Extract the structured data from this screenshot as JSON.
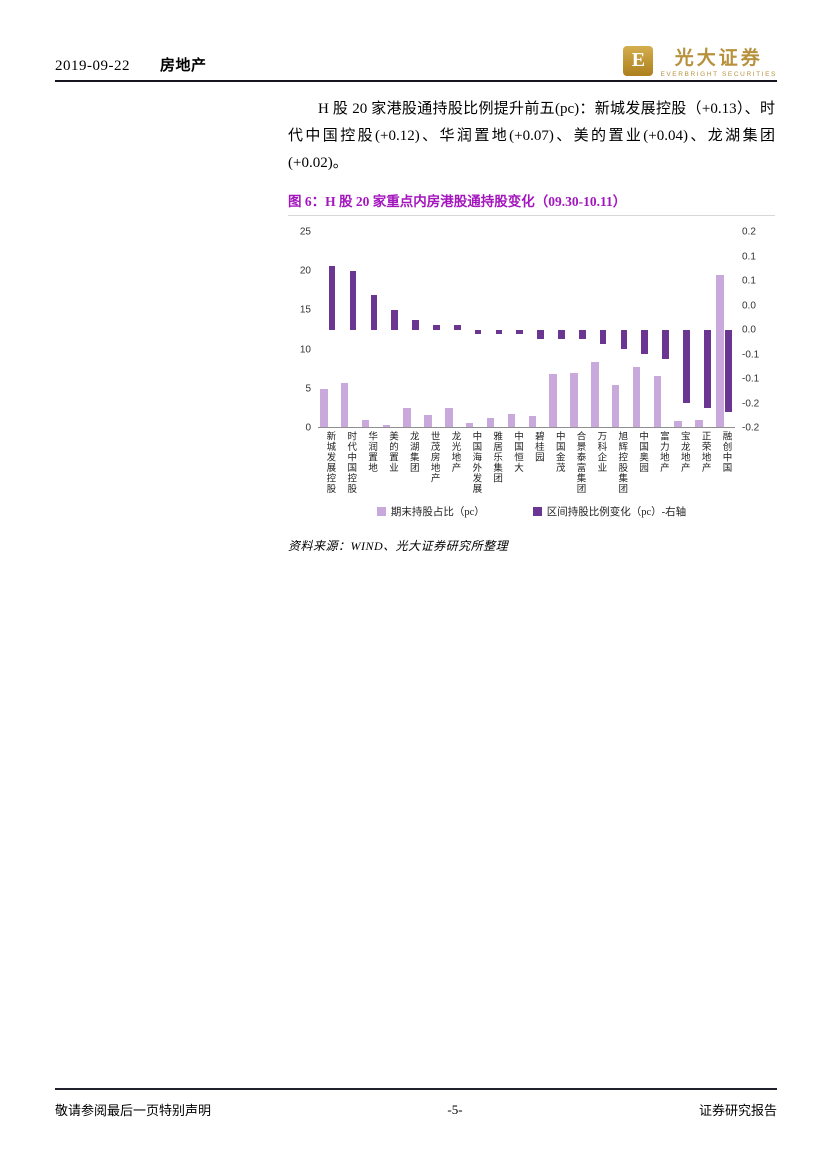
{
  "header": {
    "date": "2019-09-22",
    "category": "房地产",
    "logo": {
      "mark": "E",
      "name": "光大证券",
      "subtitle": "EVERBRIGHT SECURITIES"
    }
  },
  "body": {
    "paragraph": "H 股 20 家港股通持股比例提升前五(pc)：新城发展控股（+0.13）、时代中国控股(+0.12)、华润置地(+0.07)、美的置业(+0.04)、龙湖集团(+0.02)。"
  },
  "figure": {
    "title": "图 6：H 股 20 家重点内房港股通持股变化（09.30-10.11）",
    "source": "资料来源：WIND、光大证券研究所整理"
  },
  "chart_data": {
    "type": "bar",
    "title": "H 股 20 家重点内房港股通持股变化（09.30-10.11）",
    "categories": [
      "新城发展控股",
      "时代中国控股",
      "华润置地",
      "美的置业",
      "龙湖集团",
      "世茂房地产",
      "龙光地产",
      "中国海外发展",
      "雅居乐集团",
      "中国恒大",
      "碧桂园",
      "中国金茂",
      "合景泰富集团",
      "万科企业",
      "旭辉控股集团",
      "中国奥园",
      "富力地产",
      "宝龙地产",
      "正荣地产",
      "融创中国"
    ],
    "series": [
      {
        "name": "期末持股占比（pc）",
        "axis": "left",
        "color": "#C9A8DC",
        "values": [
          4.9,
          5.6,
          0.9,
          0.2,
          2.4,
          1.5,
          2.4,
          0.5,
          1.2,
          1.7,
          1.4,
          6.8,
          6.9,
          8.3,
          5.4,
          7.7,
          6.5,
          0.8,
          0.9,
          19.5
        ]
      },
      {
        "name": "区间持股比例变化（pc）-右轴",
        "axis": "right",
        "color": "#6B3592",
        "values": [
          0.13,
          0.12,
          0.07,
          0.04,
          0.02,
          0.01,
          0.01,
          -0.01,
          -0.01,
          -0.01,
          -0.02,
          -0.02,
          -0.02,
          -0.03,
          -0.04,
          -0.05,
          -0.06,
          -0.15,
          -0.16,
          -0.17
        ]
      }
    ],
    "left_axis": {
      "min": 0,
      "max": 25,
      "ticks": [
        25,
        20,
        15,
        10,
        5,
        0
      ]
    },
    "right_axis": {
      "min": -0.2,
      "max": 0.2,
      "tick_labels": [
        "0.2",
        "0.1",
        "0.1",
        "0.0",
        "0.0",
        "-0.1",
        "-0.1",
        "-0.2",
        "-0.2"
      ]
    },
    "legend_position": "bottom",
    "grid": false
  },
  "colors": {
    "figure_title": "#A316BE",
    "logo_gold": "#B8913D",
    "series_light": "#C9A8DC",
    "series_dark": "#6B3592"
  },
  "footer": {
    "left": "敬请参阅最后一页特别声明",
    "center": "-5-",
    "right": "证券研究报告"
  }
}
